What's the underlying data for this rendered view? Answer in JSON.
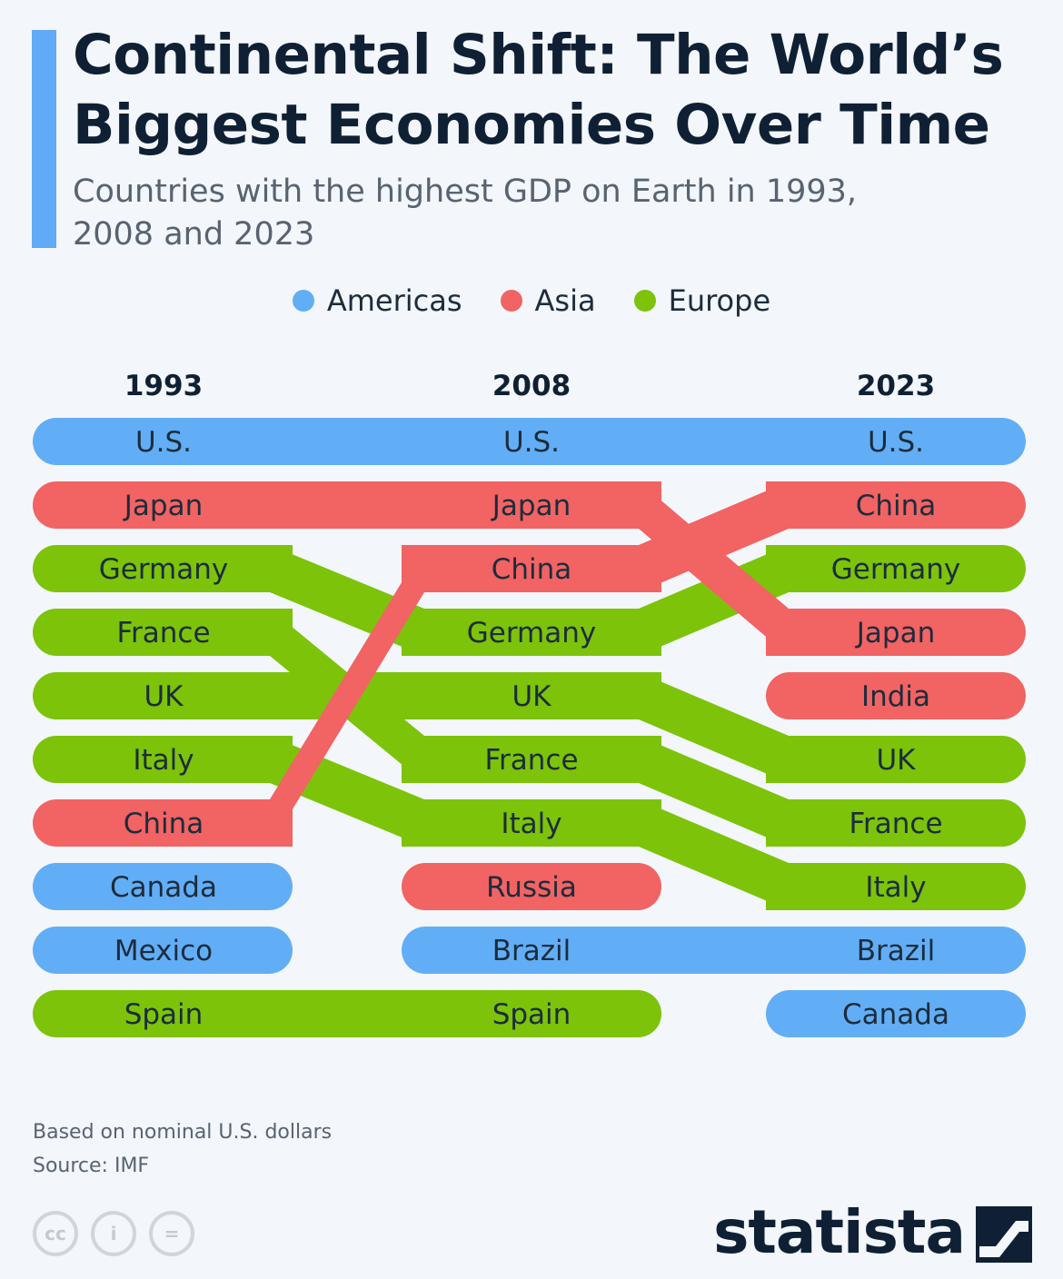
{
  "header": {
    "title": "Continental Shift: The World’s Biggest Economies Over Time",
    "subtitle": "Countries with the highest GDP on Earth in 1993, 2008 and 2023"
  },
  "legend": [
    {
      "label": "Americas",
      "color": "#62aef6"
    },
    {
      "label": "Asia",
      "color": "#f26363"
    },
    {
      "label": "Europe",
      "color": "#7cc30a"
    }
  ],
  "chart_data": {
    "type": "table",
    "columns": [
      "1993",
      "2008",
      "2023"
    ],
    "rankings": [
      {
        "country": "U.S.",
        "region": "Americas",
        "ranks": [
          1,
          1,
          1
        ]
      },
      {
        "country": "Japan",
        "region": "Asia",
        "ranks": [
          2,
          2,
          4
        ]
      },
      {
        "country": "Germany",
        "region": "Europe",
        "ranks": [
          3,
          4,
          3
        ]
      },
      {
        "country": "France",
        "region": "Europe",
        "ranks": [
          4,
          6,
          7
        ]
      },
      {
        "country": "UK",
        "region": "Europe",
        "ranks": [
          5,
          5,
          6
        ]
      },
      {
        "country": "Italy",
        "region": "Europe",
        "ranks": [
          6,
          7,
          8
        ]
      },
      {
        "country": "China",
        "region": "Asia",
        "ranks": [
          7,
          3,
          2
        ]
      },
      {
        "country": "Canada",
        "region": "Americas",
        "ranks": [
          8,
          null,
          10
        ]
      },
      {
        "country": "Mexico",
        "region": "Americas",
        "ranks": [
          9,
          null,
          null
        ]
      },
      {
        "country": "Spain",
        "region": "Europe",
        "ranks": [
          10,
          10,
          null
        ]
      },
      {
        "country": "Russia",
        "region": "Asia",
        "ranks": [
          null,
          8,
          null
        ]
      },
      {
        "country": "Brazil",
        "region": "Americas",
        "ranks": [
          null,
          9,
          9
        ]
      },
      {
        "country": "India",
        "region": "Asia",
        "ranks": [
          null,
          null,
          5
        ]
      }
    ]
  },
  "footer": {
    "note": "Based on nominal U.S. dollars",
    "source": "Source: IMF",
    "cc_icons": [
      "cc-icon",
      "attribution-icon",
      "no-derivatives-icon"
    ],
    "cc_symbols": [
      "cc",
      "i",
      "="
    ],
    "brand": "statista"
  }
}
